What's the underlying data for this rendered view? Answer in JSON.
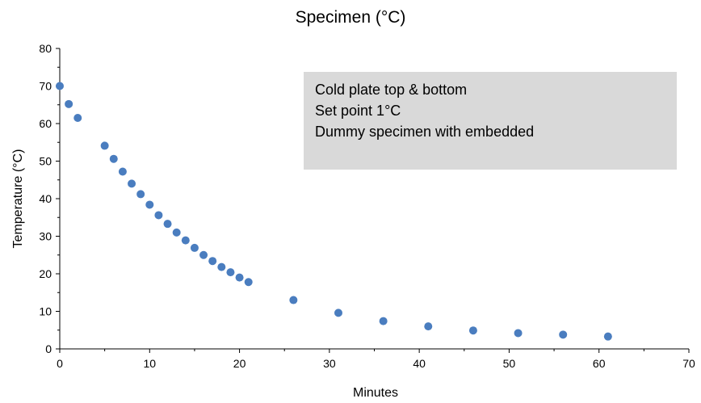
{
  "chart_data": {
    "type": "scatter",
    "title": "Specimen (°C)",
    "xlabel": "Minutes",
    "ylabel": "Temperature (°C)",
    "xlim": [
      0,
      70
    ],
    "ylim": [
      0,
      80
    ],
    "x_ticks": [
      "0",
      "10",
      "20",
      "30",
      "40",
      "50",
      "60",
      "70"
    ],
    "y_ticks": [
      "0",
      "10",
      "20",
      "30",
      "40",
      "50",
      "60",
      "70",
      "80"
    ],
    "grid": false,
    "marker_color": "#4a7dbf",
    "series": [
      {
        "x": [
          0,
          1,
          2,
          5,
          6,
          7,
          8,
          9,
          10,
          11,
          12,
          13,
          14,
          15,
          16,
          17,
          18,
          19,
          20,
          21,
          26,
          31,
          36,
          41,
          46,
          51,
          56,
          61
        ],
        "y": [
          70,
          65.2,
          61.5,
          54.1,
          50.6,
          47.2,
          44.0,
          41.2,
          38.4,
          35.6,
          33.3,
          31.0,
          28.9,
          26.9,
          25.0,
          23.4,
          21.8,
          20.4,
          19.0,
          17.8,
          13.0,
          9.6,
          7.4,
          6.0,
          4.9,
          4.2,
          3.8,
          3.3
        ]
      }
    ],
    "annotation": {
      "lines": [
        "Cold plate top & bottom",
        "Set point 1°C",
        "Dummy specimen with embedded"
      ],
      "background": "#d9d9d9"
    }
  }
}
